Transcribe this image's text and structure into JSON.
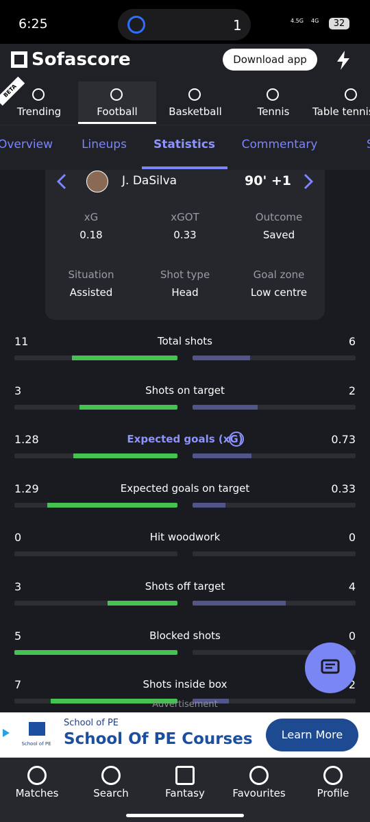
{
  "status_bar": {
    "time": "6:25",
    "indicator": "1",
    "network_1": "4.5G",
    "network_2": "4G",
    "battery": "32"
  },
  "header": {
    "logo": "Sofascore",
    "download_button": "Download app"
  },
  "sport_tabs": {
    "badge": "BETA",
    "tabs": [
      "Trending",
      "Football",
      "Basketball",
      "Tennis",
      "Table tennis"
    ],
    "selected": 1
  },
  "match_tabs": {
    "tabs": [
      "Overview",
      "Lineups",
      "Statistics",
      "Commentary",
      "Standings"
    ],
    "selected": 2
  },
  "shot_card": {
    "player": "J. DaSilva",
    "time": "90' +1",
    "fields": [
      {
        "label": "xG",
        "value": 0.18
      },
      {
        "label": "xGOT",
        "value": 0.33
      },
      {
        "label": "Outcome",
        "value": "Saved"
      },
      {
        "label": "Situation",
        "value": "Assisted"
      },
      {
        "label": "Shot type",
        "value": "Head"
      },
      {
        "label": "Goal zone",
        "value": "Low centre"
      }
    ]
  },
  "stats": {
    "rows": [
      {
        "name": "Total shots",
        "home": 11,
        "away": 6
      },
      {
        "name": "Shots on target",
        "home": 3,
        "away": 2
      },
      {
        "name": "Expected goals (xG)",
        "home": 1.28,
        "away": 0.73,
        "highlight": true
      },
      {
        "name": "Expected goals on target",
        "home": 1.29,
        "away": 0.33
      },
      {
        "name": "Hit woodwork",
        "home": 0,
        "away": 0
      },
      {
        "name": "Shots off target",
        "home": 3,
        "away": 4
      },
      {
        "name": "Blocked shots",
        "home": 5,
        "away": 0
      },
      {
        "name": "Shots inside box",
        "home": 7,
        "away": 2
      }
    ],
    "home_color": "#45c24f",
    "away_color": "#525589",
    "highlight_color": "#8d93ff"
  },
  "advertisement": {
    "label": "Advertisement",
    "brand": "School of PE",
    "logo_text": "School of PE",
    "headline": "School Of PE Courses",
    "button": "Learn More"
  },
  "bottom_nav": [
    "Matches",
    "Search",
    "Fantasy",
    "Favourites",
    "Profile"
  ]
}
